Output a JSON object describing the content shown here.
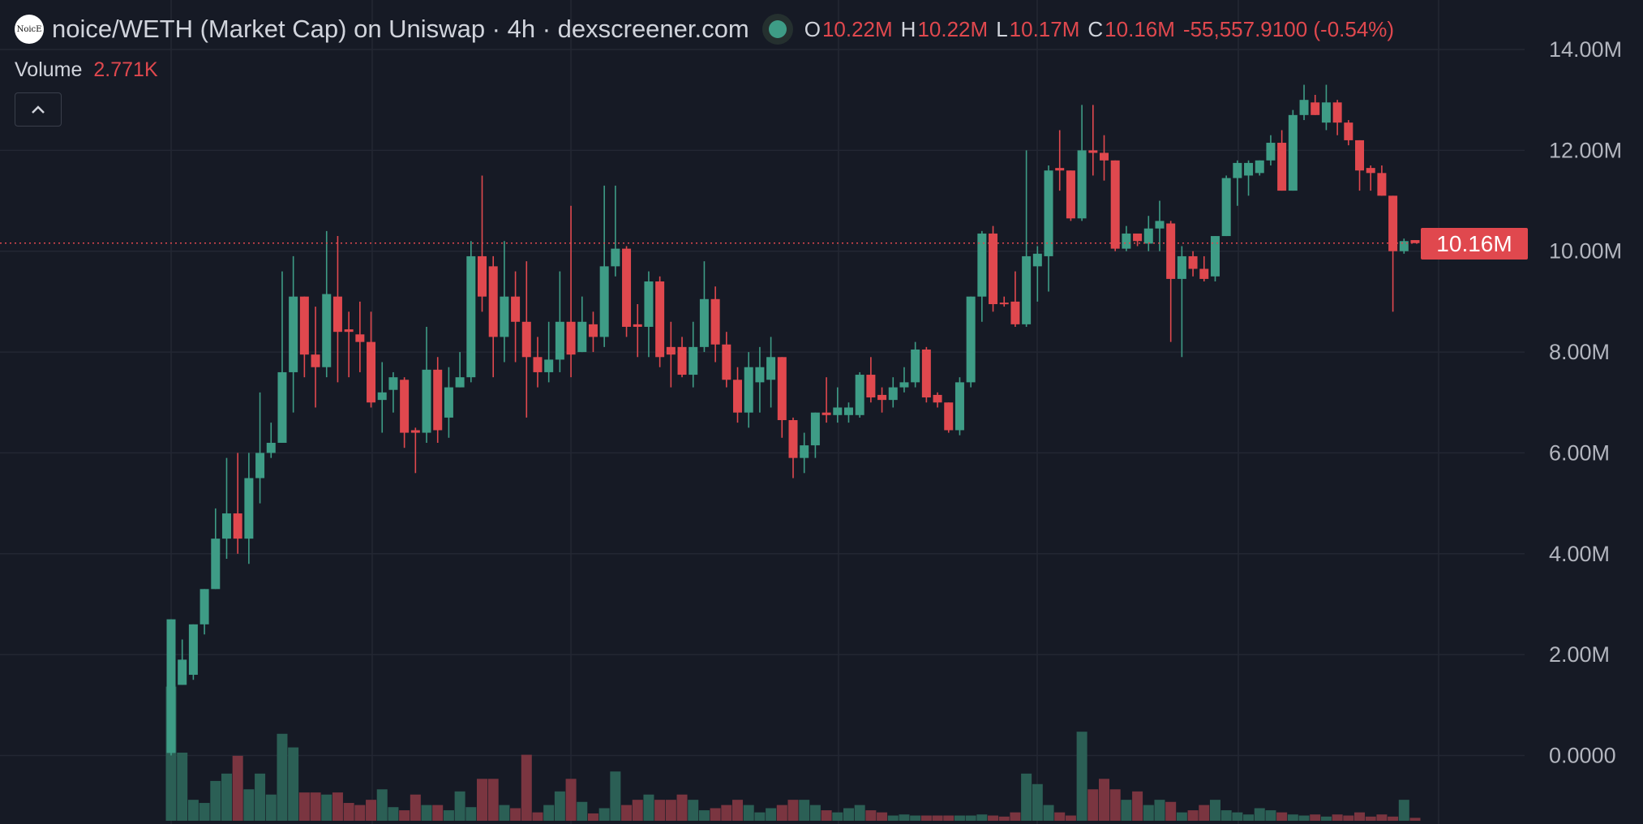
{
  "header": {
    "title": "noice/WETH (Market Cap) on Uniswap · 4h · dexscreener.com",
    "logo_text": "NoicE",
    "ohlc": [
      {
        "key": "O",
        "value": "10.22M"
      },
      {
        "key": "H",
        "value": "10.22M"
      },
      {
        "key": "L",
        "value": "10.17M"
      },
      {
        "key": "C",
        "value": "10.16M"
      }
    ],
    "change": "-55,557.9100 (-0.54%)",
    "volume_label": "Volume",
    "volume_value": "2.771K",
    "collapse_icon": "chevron-up-icon"
  },
  "price_tag": "10.16M",
  "colors": {
    "background": "#161a25",
    "up": "#3e9c86",
    "down": "#e0484e",
    "up_volume": "#2b5f55",
    "down_volume": "#7a3540",
    "grid": "#232733"
  },
  "chart_data": {
    "type": "candlestick",
    "ylabel_ticks": [
      "14.00M",
      "12.00M",
      "10.00M",
      "8.00M",
      "6.00M",
      "4.00M",
      "2.00M",
      "0.0000"
    ],
    "ylim": [
      0,
      14
    ],
    "grid": true,
    "last_price": 10.16,
    "unit": "M",
    "ohlc": [
      [
        0.05,
        2.7,
        0,
        2.7
      ],
      [
        1.4,
        2.3,
        1.4,
        1.9
      ],
      [
        1.6,
        2.6,
        1.5,
        2.6
      ],
      [
        2.6,
        3.3,
        2.4,
        3.3
      ],
      [
        3.3,
        4.9,
        3.3,
        4.3
      ],
      [
        4.3,
        5.9,
        3.9,
        4.8
      ],
      [
        4.8,
        6.0,
        4.0,
        4.3
      ],
      [
        4.3,
        6.0,
        3.8,
        5.5
      ],
      [
        5.5,
        7.2,
        5.0,
        6.0
      ],
      [
        6.0,
        6.6,
        5.9,
        6.2
      ],
      [
        6.2,
        9.6,
        6.2,
        7.6
      ],
      [
        7.6,
        9.9,
        6.8,
        9.1
      ],
      [
        9.1,
        9.1,
        7.5,
        7.95
      ],
      [
        7.95,
        8.9,
        6.9,
        7.7
      ],
      [
        7.7,
        10.4,
        7.5,
        9.15
      ],
      [
        9.1,
        10.3,
        7.4,
        8.4
      ],
      [
        8.45,
        8.8,
        7.5,
        8.4
      ],
      [
        8.35,
        9.0,
        7.6,
        8.2
      ],
      [
        8.2,
        8.8,
        6.9,
        7.0
      ],
      [
        7.05,
        7.8,
        6.4,
        7.2
      ],
      [
        7.25,
        7.6,
        6.8,
        7.5
      ],
      [
        7.45,
        7.5,
        6.1,
        6.4
      ],
      [
        6.45,
        6.5,
        5.6,
        6.4
      ],
      [
        6.4,
        8.5,
        6.2,
        7.65
      ],
      [
        7.65,
        7.9,
        6.2,
        6.45
      ],
      [
        6.7,
        7.7,
        6.3,
        7.3
      ],
      [
        7.3,
        8.0,
        7.3,
        7.5
      ],
      [
        7.5,
        10.2,
        7.4,
        9.9
      ],
      [
        9.9,
        11.5,
        8.8,
        9.1
      ],
      [
        9.7,
        9.9,
        7.5,
        8.3
      ],
      [
        8.3,
        10.2,
        7.8,
        9.1
      ],
      [
        9.1,
        9.6,
        7.8,
        8.6
      ],
      [
        8.6,
        9.8,
        6.7,
        7.9
      ],
      [
        7.9,
        8.3,
        7.3,
        7.6
      ],
      [
        7.6,
        8.6,
        7.4,
        7.85
      ],
      [
        7.85,
        9.6,
        7.6,
        8.6
      ],
      [
        8.6,
        10.9,
        7.5,
        7.95
      ],
      [
        8.0,
        9.1,
        8.0,
        8.6
      ],
      [
        8.55,
        8.8,
        8.0,
        8.3
      ],
      [
        8.3,
        11.3,
        8.1,
        9.7
      ],
      [
        9.7,
        11.3,
        9.5,
        10.05
      ],
      [
        10.05,
        10.1,
        8.3,
        8.5
      ],
      [
        8.55,
        8.95,
        7.9,
        8.5
      ],
      [
        8.5,
        9.6,
        7.9,
        9.4
      ],
      [
        9.4,
        9.5,
        7.7,
        7.9
      ],
      [
        8.1,
        8.6,
        7.3,
        7.95
      ],
      [
        8.1,
        8.3,
        7.5,
        7.55
      ],
      [
        7.55,
        8.6,
        7.3,
        8.1
      ],
      [
        8.1,
        9.8,
        8.0,
        9.05
      ],
      [
        9.05,
        9.3,
        7.8,
        8.15
      ],
      [
        8.15,
        8.4,
        7.3,
        7.45
      ],
      [
        7.45,
        7.7,
        6.6,
        6.8
      ],
      [
        6.8,
        8.0,
        6.5,
        7.7
      ],
      [
        7.4,
        8.1,
        6.8,
        7.7
      ],
      [
        7.45,
        8.3,
        6.9,
        7.9
      ],
      [
        7.9,
        7.9,
        6.3,
        6.65
      ],
      [
        6.65,
        6.7,
        5.5,
        5.9
      ],
      [
        5.9,
        6.4,
        5.6,
        6.15
      ],
      [
        6.15,
        6.8,
        5.9,
        6.8
      ],
      [
        6.8,
        7.5,
        6.6,
        6.75
      ],
      [
        6.75,
        7.3,
        6.6,
        6.9
      ],
      [
        6.75,
        7.0,
        6.6,
        6.9
      ],
      [
        6.75,
        7.6,
        6.7,
        7.55
      ],
      [
        7.55,
        7.9,
        7.0,
        7.1
      ],
      [
        7.15,
        7.3,
        6.8,
        7.05
      ],
      [
        7.05,
        7.5,
        6.9,
        7.3
      ],
      [
        7.3,
        7.7,
        7.2,
        7.4
      ],
      [
        7.4,
        8.2,
        7.3,
        8.05
      ],
      [
        8.05,
        8.1,
        7.0,
        7.1
      ],
      [
        7.15,
        7.2,
        6.9,
        7.0
      ],
      [
        7.0,
        7.0,
        6.4,
        6.45
      ],
      [
        6.45,
        7.5,
        6.35,
        7.4
      ],
      [
        7.4,
        9.1,
        7.3,
        9.1
      ],
      [
        9.1,
        10.4,
        8.6,
        10.35
      ],
      [
        10.35,
        10.5,
        8.8,
        8.95
      ],
      [
        8.98,
        9.1,
        8.9,
        8.95
      ],
      [
        9.0,
        9.6,
        8.5,
        8.55
      ],
      [
        8.55,
        12.0,
        8.5,
        9.9
      ],
      [
        9.7,
        10.1,
        9.0,
        9.95
      ],
      [
        9.9,
        11.7,
        9.2,
        11.6
      ],
      [
        11.65,
        12.4,
        11.2,
        11.6
      ],
      [
        11.6,
        11.6,
        10.6,
        10.65
      ],
      [
        10.65,
        12.9,
        10.6,
        12.0
      ],
      [
        12.0,
        12.9,
        11.5,
        11.95
      ],
      [
        11.95,
        12.3,
        11.4,
        11.8
      ],
      [
        11.8,
        11.8,
        10.0,
        10.05
      ],
      [
        10.05,
        10.5,
        10.0,
        10.35
      ],
      [
        10.35,
        10.3,
        10.1,
        10.2
      ],
      [
        10.15,
        10.7,
        10.0,
        10.45
      ],
      [
        10.45,
        11.0,
        10.0,
        10.6
      ],
      [
        10.55,
        10.6,
        8.2,
        9.45
      ],
      [
        9.45,
        10.1,
        7.9,
        9.9
      ],
      [
        9.9,
        10.0,
        9.5,
        9.65
      ],
      [
        9.65,
        9.9,
        9.4,
        9.45
      ],
      [
        9.5,
        10.3,
        9.4,
        10.3
      ],
      [
        10.3,
        11.5,
        10.3,
        11.45
      ],
      [
        11.45,
        11.8,
        10.9,
        11.75
      ],
      [
        11.5,
        11.8,
        11.1,
        11.75
      ],
      [
        11.55,
        11.8,
        11.5,
        11.8
      ],
      [
        11.8,
        12.3,
        11.7,
        12.15
      ],
      [
        12.15,
        12.4,
        11.2,
        11.2
      ],
      [
        11.2,
        12.8,
        11.2,
        12.7
      ],
      [
        12.7,
        13.3,
        12.6,
        13.0
      ],
      [
        12.95,
        13.1,
        12.7,
        12.7
      ],
      [
        12.55,
        13.3,
        12.4,
        12.95
      ],
      [
        12.95,
        13.0,
        12.3,
        12.55
      ],
      [
        12.55,
        12.6,
        12.1,
        12.2
      ],
      [
        12.2,
        12.2,
        11.2,
        11.6
      ],
      [
        11.65,
        11.7,
        11.2,
        11.55
      ],
      [
        11.55,
        11.7,
        11.1,
        11.1
      ],
      [
        11.1,
        11.1,
        8.8,
        10.0
      ],
      [
        10.0,
        10.25,
        9.95,
        10.2
      ],
      [
        10.22,
        10.22,
        10.17,
        10.16
      ]
    ],
    "volume": [
      128,
      65,
      20,
      17,
      38,
      45,
      62,
      30,
      45,
      25,
      83,
      70,
      27,
      27,
      25,
      27,
      17,
      15,
      20,
      30,
      13,
      10,
      25,
      15,
      15,
      10,
      28,
      13,
      40,
      40,
      15,
      12,
      63,
      8,
      15,
      28,
      40,
      18,
      7,
      12,
      47,
      15,
      20,
      25,
      20,
      20,
      25,
      20,
      10,
      12,
      15,
      20,
      15,
      8,
      12,
      15,
      20,
      20,
      15,
      10,
      8,
      12,
      15,
      10,
      8,
      5,
      6,
      5,
      5,
      5,
      5,
      5,
      5,
      6,
      5,
      4,
      8,
      45,
      35,
      15,
      8,
      5,
      85,
      30,
      40,
      30,
      20,
      28,
      15,
      20,
      18,
      8,
      10,
      15,
      20,
      10,
      8,
      6,
      12,
      10,
      8,
      6,
      5,
      6,
      4,
      6,
      5,
      8,
      4,
      6,
      4,
      20,
      2.771
    ],
    "volume_unit": "K"
  }
}
